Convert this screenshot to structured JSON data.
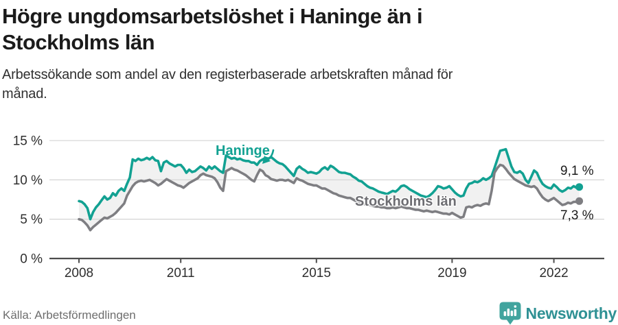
{
  "header": {
    "title_line1": "Högre ungdomsarbetslöshet i Haninge än i",
    "title_line2": "Stockholms län",
    "subtitle": "Arbetssökande som andel av den registerbaserade arbetskraften månad för månad."
  },
  "annotations": {
    "haninge_label": "Haninge",
    "stockholm_label": "Stockholms län",
    "haninge_end_value": "9,1 %",
    "stockholm_end_value": "7,3 %"
  },
  "footer": {
    "source": "Källa: Arbetsförmedlingen",
    "brand": "Newsworthy"
  },
  "colors": {
    "haninge": "#12a192",
    "stockholm": "#7e7e82",
    "band_fill": "#f1f1f1",
    "grid": "#d7d7d7",
    "axis": "#4c4c4c",
    "tick_text": "#2e2e2e",
    "logo_badge": "#41a49e"
  },
  "chart_data": {
    "type": "line",
    "title": "Högre ungdomsarbetslöshet i Haninge än i Stockholms län",
    "subtitle": "Arbetssökande som andel av den registerbaserade arbetskraften månad för månad.",
    "frequency": "monthly",
    "x_start": {
      "year": 2008,
      "month": 1
    },
    "x_end": {
      "year": 2022,
      "month": 10
    },
    "ylim": [
      0,
      16.5
    ],
    "grid": true,
    "legend_position": "inline-labels",
    "y_ticks": [
      {
        "value": 0,
        "label": "0 %"
      },
      {
        "value": 5,
        "label": "5 %"
      },
      {
        "value": 10,
        "label": "10 %"
      },
      {
        "value": 15,
        "label": "15 %"
      }
    ],
    "x_ticks": [
      {
        "value": 2008,
        "label": "2008"
      },
      {
        "value": 2011,
        "label": "2011"
      },
      {
        "value": 2015,
        "label": "2015"
      },
      {
        "value": 2019,
        "label": "2019"
      },
      {
        "value": 2022,
        "label": "2022"
      }
    ],
    "series": [
      {
        "name": "Haninge",
        "color": "#12a192",
        "end_label": "9,1 %",
        "values": [
          7.3,
          7.2,
          6.9,
          6.4,
          5.0,
          5.9,
          6.5,
          6.9,
          7.4,
          7.9,
          7.5,
          7.7,
          8.3,
          8.0,
          8.6,
          8.9,
          8.6,
          9.5,
          10.3,
          12.6,
          12.4,
          12.7,
          12.5,
          12.6,
          12.8,
          12.6,
          12.9,
          12.5,
          12.4,
          11.1,
          12.2,
          12.4,
          12.1,
          11.9,
          11.7,
          11.9,
          11.9,
          11.5,
          10.9,
          11.3,
          11.0,
          11.1,
          11.4,
          11.7,
          11.5,
          11.2,
          11.7,
          11.4,
          11.7,
          11.4,
          11.1,
          10.9,
          13.1,
          12.9,
          12.7,
          12.8,
          12.6,
          12.7,
          12.5,
          12.4,
          12.4,
          12.2,
          12.2,
          11.9,
          12.4,
          12.6,
          12.8,
          12.7,
          12.9,
          12.6,
          12.3,
          12.1,
          12.0,
          11.7,
          11.3,
          10.9,
          10.5,
          11.4,
          11.7,
          11.4,
          11.2,
          10.9,
          11.0,
          10.9,
          10.8,
          11.0,
          11.4,
          11.6,
          11.3,
          11.8,
          11.6,
          11.3,
          11.0,
          10.9,
          10.9,
          10.8,
          10.7,
          10.4,
          10.2,
          9.9,
          9.8,
          9.5,
          9.2,
          9.0,
          8.9,
          8.7,
          8.5,
          8.4,
          8.3,
          8.2,
          8.4,
          8.6,
          8.5,
          8.8,
          9.2,
          9.3,
          9.1,
          8.8,
          8.6,
          8.4,
          8.2,
          8.0,
          7.9,
          7.8,
          8.0,
          8.3,
          8.7,
          9.2,
          9.1,
          8.9,
          9.0,
          9.2,
          8.8,
          8.4,
          8.1,
          7.9,
          8.0,
          8.9,
          9.5,
          9.6,
          9.8,
          9.7,
          9.9,
          10.2,
          10.0,
          10.2,
          10.5,
          11.5,
          12.6,
          13.7,
          13.8,
          13.9,
          12.8,
          11.7,
          11.0,
          10.9,
          11.1,
          10.8,
          10.0,
          9.6,
          10.4,
          11.2,
          10.9,
          10.1,
          9.5,
          9.2,
          9.0,
          8.9,
          9.4,
          9.1,
          8.7,
          8.5,
          8.7,
          9.0,
          8.9,
          9.2,
          9.0,
          9.1
        ]
      },
      {
        "name": "Stockholms län",
        "color": "#7e7e82",
        "end_label": "7,3 %",
        "values": [
          5.0,
          4.9,
          4.6,
          4.2,
          3.6,
          4.0,
          4.3,
          4.6,
          4.9,
          5.2,
          5.1,
          5.3,
          5.5,
          5.8,
          6.2,
          6.6,
          7.0,
          8.0,
          8.6,
          9.2,
          9.6,
          9.8,
          9.9,
          9.8,
          9.9,
          10.0,
          9.8,
          9.6,
          9.3,
          9.5,
          9.8,
          10.1,
          9.9,
          9.7,
          9.5,
          9.3,
          9.2,
          9.0,
          9.3,
          9.6,
          9.8,
          10.0,
          10.2,
          10.6,
          10.8,
          10.6,
          10.5,
          10.4,
          10.2,
          9.7,
          9.0,
          8.6,
          11.1,
          11.3,
          11.5,
          11.3,
          11.2,
          11.0,
          10.8,
          10.6,
          10.3,
          10.0,
          9.8,
          10.6,
          11.3,
          11.1,
          10.6,
          10.4,
          10.1,
          10.0,
          9.9,
          10.0,
          10.0,
          9.9,
          10.0,
          9.8,
          9.6,
          10.2,
          10.0,
          9.9,
          9.7,
          9.5,
          9.4,
          9.3,
          9.3,
          9.1,
          8.9,
          8.9,
          8.7,
          8.5,
          8.3,
          8.2,
          8.0,
          7.9,
          7.8,
          7.7,
          7.7,
          7.5,
          7.3,
          7.2,
          7.0,
          6.9,
          6.8,
          6.8,
          6.7,
          6.6,
          6.6,
          6.5,
          6.5,
          6.4,
          6.4,
          6.5,
          6.4,
          6.5,
          6.6,
          6.5,
          6.4,
          6.4,
          6.3,
          6.2,
          6.2,
          6.1,
          6.0,
          6.1,
          6.0,
          5.9,
          6.0,
          5.9,
          5.8,
          5.7,
          5.7,
          5.6,
          5.8,
          5.6,
          5.4,
          5.2,
          5.3,
          6.5,
          6.6,
          6.5,
          6.7,
          6.8,
          6.7,
          6.9,
          7.0,
          6.9,
          8.6,
          10.9,
          11.5,
          11.9,
          11.8,
          11.4,
          10.9,
          10.5,
          10.1,
          9.9,
          9.7,
          9.5,
          9.3,
          9.2,
          9.1,
          9.2,
          8.9,
          8.3,
          7.8,
          7.5,
          7.3,
          7.5,
          7.7,
          7.4,
          7.1,
          6.8,
          6.9,
          7.1,
          7.0,
          7.2,
          7.2,
          7.3
        ]
      }
    ]
  }
}
